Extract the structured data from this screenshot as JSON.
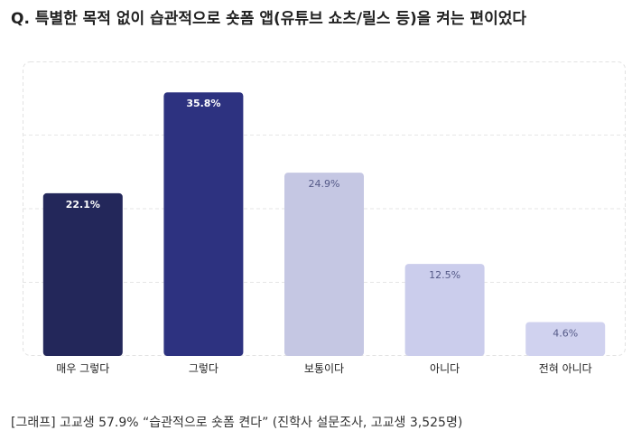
{
  "title": "Q. 특별한 목적 없이 습관적으로 숏폼 앱(유튜브 쇼츠/릴스 등)을 켜는 편이었다",
  "caption": "[그래프] 고교생 57.9% “습관적으로 숏폼 켠다” (진학사 설문조사, 고교생 3,525명)",
  "chart_data": {
    "type": "bar",
    "title": "Q. 특별한 목적 없이 습관적으로 숏폼 앱(유튜브 쇼츠/릴스 등)을 켜는 편이었다",
    "xlabel": "",
    "ylabel": "",
    "categories": [
      "매우 그렇다",
      "그렇다",
      "보통이다",
      "아니다",
      "전혀 아니다"
    ],
    "values": [
      22.1,
      35.8,
      24.9,
      12.5,
      4.6
    ],
    "value_labels": [
      "22.1%",
      "35.8%",
      "24.9%",
      "12.5%",
      "4.6%"
    ],
    "bar_colors": [
      "#23275a",
      "#2d3280",
      "#c5c7e3",
      "#cbcdec",
      "#d0d2ef"
    ],
    "label_colors": [
      "#ffffff",
      "#ffffff",
      "#555a88",
      "#555a88",
      "#555a88"
    ],
    "ylim": [
      0,
      40
    ],
    "grid": true,
    "legend": "none"
  }
}
